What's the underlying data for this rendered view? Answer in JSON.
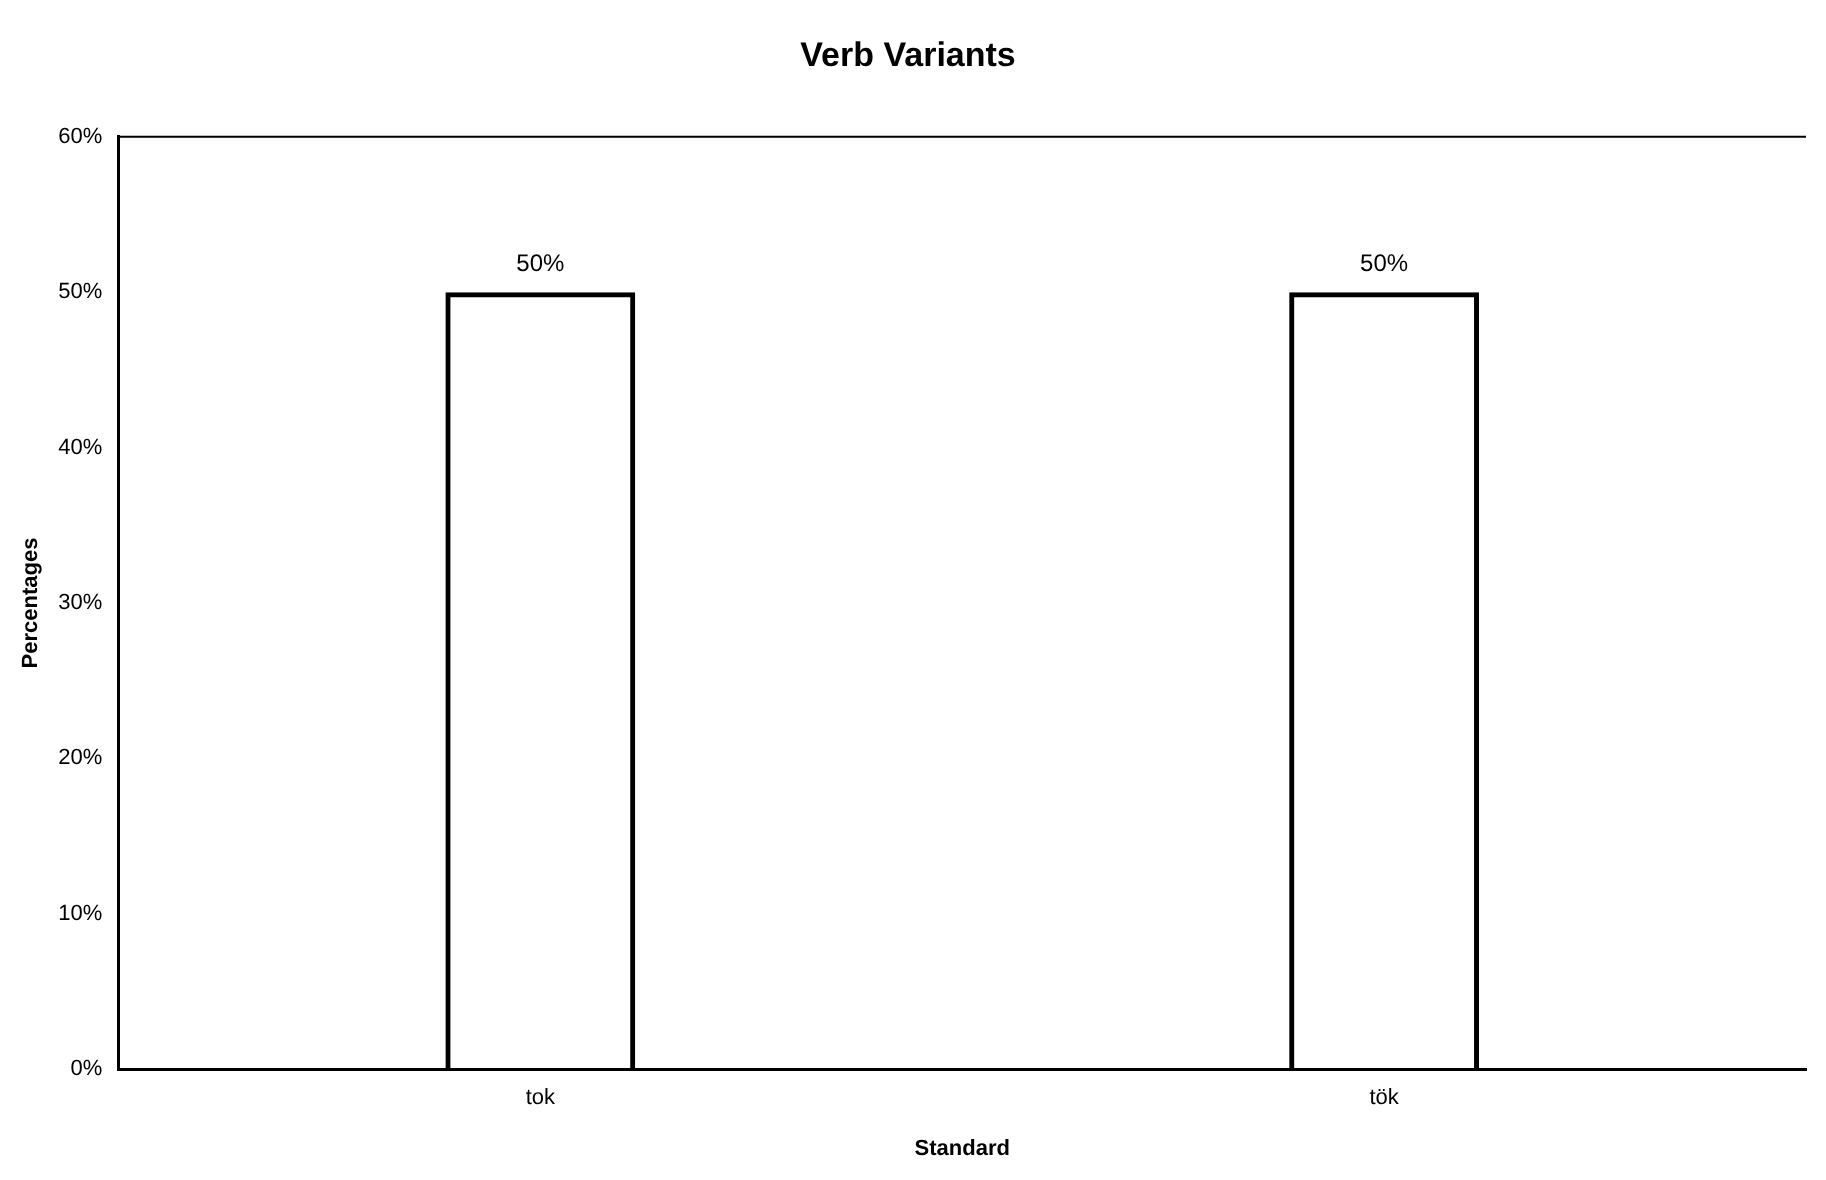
{
  "chart_data": {
    "type": "bar",
    "title": "Verb Variants",
    "xlabel": "Standard",
    "ylabel": "Percentages",
    "categories": [
      "tok",
      "tök"
    ],
    "values": [
      50,
      50
    ],
    "value_labels": [
      "50%",
      "50%"
    ],
    "color": "#000000",
    "ylim": [
      0,
      60
    ],
    "yticks": [
      {
        "value": 0,
        "label": "0%"
      },
      {
        "value": 10,
        "label": "10%"
      },
      {
        "value": 20,
        "label": "20%"
      },
      {
        "value": 30,
        "label": "30%"
      },
      {
        "value": 40,
        "label": "40%"
      },
      {
        "value": 50,
        "label": "50%"
      },
      {
        "value": 60,
        "label": "60%"
      }
    ],
    "grid": false,
    "legend": false
  }
}
